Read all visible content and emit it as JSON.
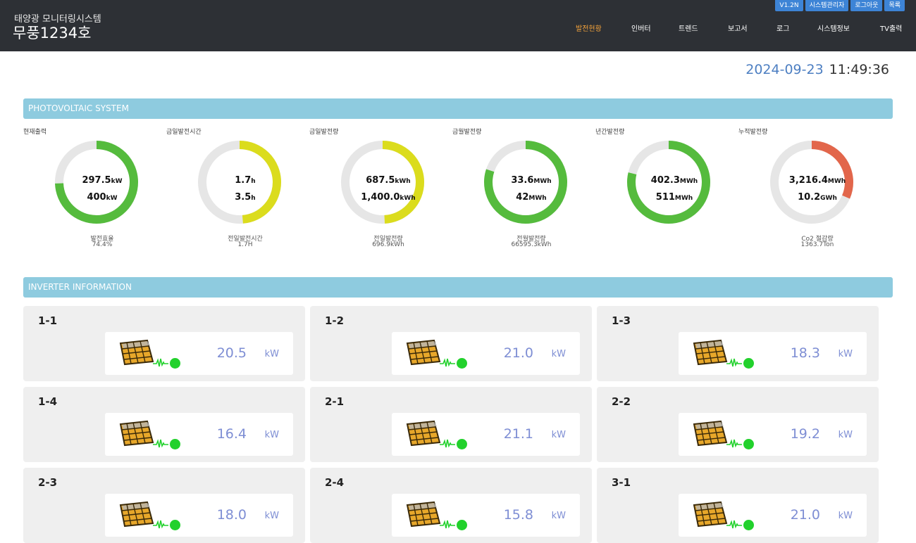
{
  "header": {
    "system_title": "태양광 모니터링시스템",
    "site_name": "무풍1234호",
    "top_buttons": [
      "V1.2N",
      "시스템관리자",
      "로그아웃",
      "목록"
    ],
    "nav": [
      "발전현황",
      "인버터",
      "트렌드",
      "보고서",
      "로그",
      "시스템정보",
      "TV출력"
    ],
    "active_nav": "발전현황",
    "accent_color": "#f5a33a"
  },
  "datetime": {
    "date": "2024-09-23",
    "time": "11:49:36"
  },
  "sections": {
    "pv": "PHOTOVOLTAIC SYSTEM",
    "inverter": "INVERTER INFORMATION"
  },
  "gauges": [
    {
      "label": "현재출력",
      "v1": "297.5",
      "u1": "kW",
      "v2": "400",
      "u2": "kW",
      "fraction": 0.744,
      "color": "#55bb3d",
      "sub1": "발전효율",
      "sub2": "74.4%"
    },
    {
      "label": "금일발전시간",
      "v1": "1.7",
      "u1": "h",
      "v2": "3.5",
      "u2": "h",
      "fraction": 0.486,
      "color": "#dbdc1d",
      "sub1": "전일발전시간",
      "sub2": "1.7H"
    },
    {
      "label": "금일발전량",
      "v1": "687.5",
      "u1": "kWh",
      "v2": "1,400.0",
      "u2": "kWh",
      "fraction": 0.491,
      "color": "#dbdc1d",
      "sub1": "전일발전량",
      "sub2": "696.9kWh"
    },
    {
      "label": "금월발전량",
      "v1": "33.6",
      "u1": "MWh",
      "v2": "42",
      "u2": "MWh",
      "fraction": 0.8,
      "color": "#55bb3d",
      "sub1": "전월발전량",
      "sub2": "66595.3kWh"
    },
    {
      "label": "년간발전량",
      "v1": "402.3",
      "u1": "MWh",
      "v2": "511",
      "u2": "MWh",
      "fraction": 0.787,
      "color": "#55bb3d",
      "sub1": "",
      "sub2": ""
    },
    {
      "label": "누적발전량",
      "v1": "3,216.4",
      "u1": "MWh",
      "v2": "10.2",
      "u2": "GWh",
      "fraction": 0.315,
      "color": "#e2664b",
      "sub1": "Co2 절감량",
      "sub2": "1363.7Ton"
    }
  ],
  "inverters": [
    {
      "id": "1-1",
      "value": "20.5",
      "unit": "kW"
    },
    {
      "id": "1-2",
      "value": "21.0",
      "unit": "kW"
    },
    {
      "id": "1-3",
      "value": "18.3",
      "unit": "kW"
    },
    {
      "id": "1-4",
      "value": "16.4",
      "unit": "kW"
    },
    {
      "id": "2-1",
      "value": "21.1",
      "unit": "kW"
    },
    {
      "id": "2-2",
      "value": "19.2",
      "unit": "kW"
    },
    {
      "id": "2-3",
      "value": "18.0",
      "unit": "kW"
    },
    {
      "id": "2-4",
      "value": "15.8",
      "unit": "kW"
    },
    {
      "id": "3-1",
      "value": "21.0",
      "unit": "kW"
    }
  ],
  "status_color": "#22d12c"
}
